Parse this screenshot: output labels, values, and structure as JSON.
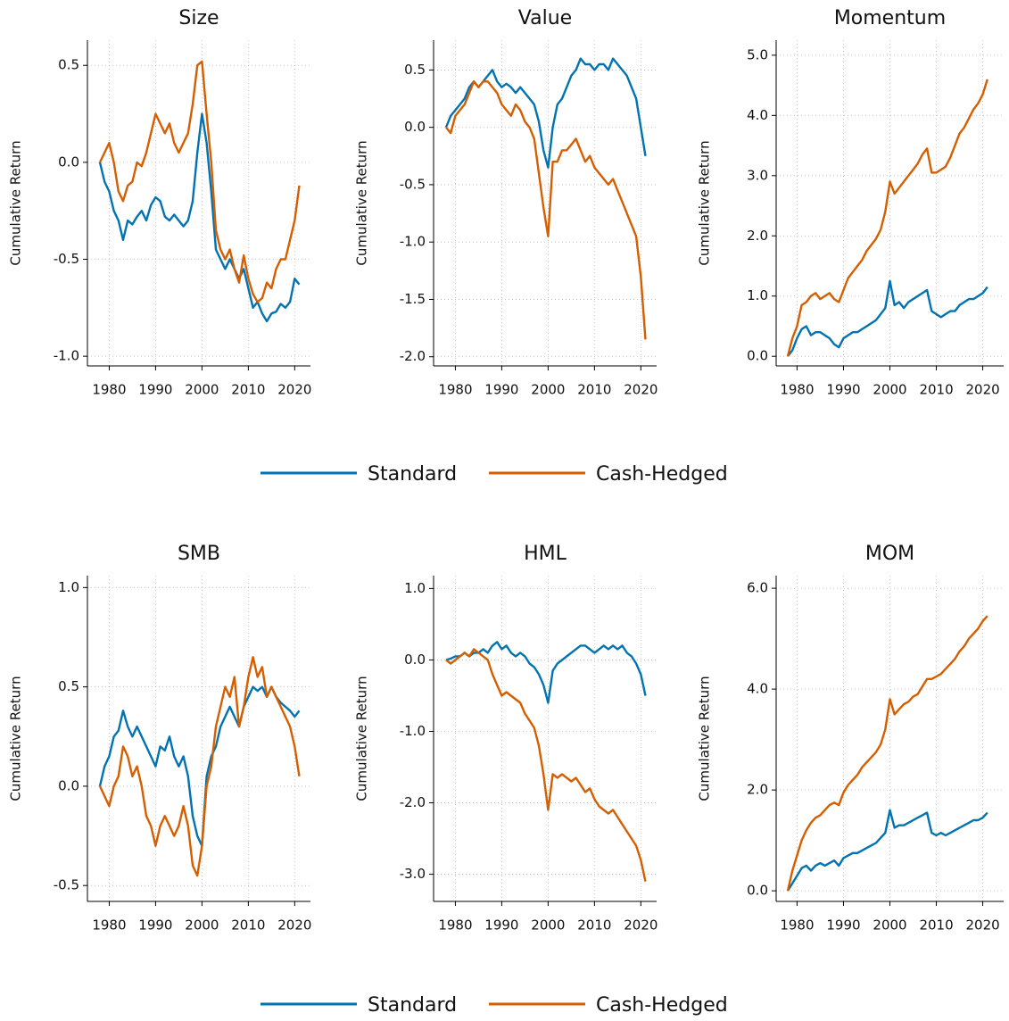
{
  "chart_data": [
    {
      "type": "line",
      "title": "Size",
      "ylabel": "Cumulative Return",
      "grid": true,
      "x": [
        1978,
        1979,
        1980,
        1981,
        1982,
        1983,
        1984,
        1985,
        1986,
        1987,
        1988,
        1989,
        1990,
        1991,
        1992,
        1993,
        1994,
        1995,
        1996,
        1997,
        1998,
        1999,
        2000,
        2001,
        2002,
        2003,
        2004,
        2005,
        2006,
        2007,
        2008,
        2009,
        2010,
        2011,
        2012,
        2013,
        2014,
        2015,
        2016,
        2017,
        2018,
        2019,
        2020,
        2021
      ],
      "xlim": [
        1975.3,
        2023.4
      ],
      "xticks": [
        1980,
        1990,
        2000,
        2010,
        2020
      ],
      "ylim": [
        -1.05,
        0.63
      ],
      "yticks": [
        {
          "value": -1,
          "label": "-1.0"
        },
        -0.5,
        {
          "value": 0,
          "label": "0.0"
        },
        0.5
      ],
      "series": [
        {
          "name": "Standard",
          "color": "#0173b2",
          "values": [
            0.0,
            -0.1,
            -0.15,
            -0.25,
            -0.3,
            -0.4,
            -0.3,
            -0.32,
            -0.28,
            -0.25,
            -0.3,
            -0.22,
            -0.18,
            -0.2,
            -0.28,
            -0.3,
            -0.27,
            -0.3,
            -0.33,
            -0.3,
            -0.2,
            0.05,
            0.25,
            0.1,
            -0.15,
            -0.45,
            -0.5,
            -0.55,
            -0.5,
            -0.55,
            -0.6,
            -0.55,
            -0.65,
            -0.75,
            -0.72,
            -0.78,
            -0.82,
            -0.78,
            -0.77,
            -0.73,
            -0.75,
            -0.72,
            -0.6,
            -0.63
          ]
        },
        {
          "name": "Cash-Hedged",
          "color": "#d55e00",
          "values": [
            0.0,
            0.05,
            0.1,
            0.0,
            -0.15,
            -0.2,
            -0.12,
            -0.1,
            0.0,
            -0.02,
            0.05,
            0.15,
            0.25,
            0.2,
            0.15,
            0.2,
            0.1,
            0.05,
            0.1,
            0.15,
            0.3,
            0.5,
            0.52,
            0.25,
            0.0,
            -0.35,
            -0.45,
            -0.5,
            -0.45,
            -0.55,
            -0.62,
            -0.48,
            -0.6,
            -0.68,
            -0.72,
            -0.7,
            -0.62,
            -0.65,
            -0.55,
            -0.5,
            -0.5,
            -0.4,
            -0.3,
            -0.12
          ]
        }
      ]
    },
    {
      "type": "line",
      "title": "Value",
      "ylabel": "Cumulative Return",
      "grid": true,
      "x": [
        1978,
        1979,
        1980,
        1981,
        1982,
        1983,
        1984,
        1985,
        1986,
        1987,
        1988,
        1989,
        1990,
        1991,
        1992,
        1993,
        1994,
        1995,
        1996,
        1997,
        1998,
        1999,
        2000,
        2001,
        2002,
        2003,
        2004,
        2005,
        2006,
        2007,
        2008,
        2009,
        2010,
        2011,
        2012,
        2013,
        2014,
        2015,
        2016,
        2017,
        2018,
        2019,
        2020,
        2021
      ],
      "xlim": [
        1975.3,
        2023.4
      ],
      "xticks": [
        1980,
        1990,
        2000,
        2010,
        2020
      ],
      "ylim": [
        -2.08,
        0.76
      ],
      "yticks": [
        {
          "value": -2,
          "label": "-2.0"
        },
        -1.5,
        {
          "value": -1,
          "label": "-1.0"
        },
        -0.5,
        {
          "value": 0,
          "label": "0.0"
        },
        0.5
      ],
      "series": [
        {
          "name": "Standard",
          "color": "#0173b2",
          "values": [
            0.0,
            0.1,
            0.15,
            0.2,
            0.25,
            0.35,
            0.4,
            0.35,
            0.4,
            0.45,
            0.5,
            0.4,
            0.35,
            0.38,
            0.35,
            0.3,
            0.35,
            0.3,
            0.25,
            0.2,
            0.05,
            -0.2,
            -0.35,
            0.0,
            0.2,
            0.25,
            0.35,
            0.45,
            0.5,
            0.6,
            0.55,
            0.55,
            0.5,
            0.55,
            0.55,
            0.5,
            0.6,
            0.55,
            0.5,
            0.45,
            0.35,
            0.25,
            0.0,
            -0.25
          ]
        },
        {
          "name": "Cash-Hedged",
          "color": "#d55e00",
          "values": [
            0.0,
            -0.05,
            0.1,
            0.15,
            0.2,
            0.3,
            0.4,
            0.35,
            0.4,
            0.4,
            0.35,
            0.3,
            0.2,
            0.15,
            0.1,
            0.2,
            0.15,
            0.05,
            0.0,
            -0.1,
            -0.4,
            -0.7,
            -0.95,
            -0.3,
            -0.3,
            -0.2,
            -0.2,
            -0.15,
            -0.1,
            -0.2,
            -0.3,
            -0.25,
            -0.35,
            -0.4,
            -0.45,
            -0.5,
            -0.45,
            -0.55,
            -0.65,
            -0.75,
            -0.85,
            -0.95,
            -1.3,
            -1.85
          ]
        }
      ]
    },
    {
      "type": "line",
      "title": "Momentum",
      "ylabel": "Cumulative Return",
      "grid": true,
      "x": [
        1978,
        1979,
        1980,
        1981,
        1982,
        1983,
        1984,
        1985,
        1986,
        1987,
        1988,
        1989,
        1990,
        1991,
        1992,
        1993,
        1994,
        1995,
        1996,
        1997,
        1998,
        1999,
        2000,
        2001,
        2002,
        2003,
        2004,
        2005,
        2006,
        2007,
        2008,
        2009,
        2010,
        2011,
        2012,
        2013,
        2014,
        2015,
        2016,
        2017,
        2018,
        2019,
        2020,
        2021
      ],
      "xlim": [
        1975.5,
        2024.5
      ],
      "xticks": [
        1980,
        1990,
        2000,
        2010,
        2020
      ],
      "ylim": [
        -0.16,
        5.25
      ],
      "yticks": [
        {
          "value": 0,
          "label": "0.0"
        },
        {
          "value": 1,
          "label": "1.0"
        },
        {
          "value": 2,
          "label": "2.0"
        },
        {
          "value": 3,
          "label": "3.0"
        },
        {
          "value": 4,
          "label": "4.0"
        },
        {
          "value": 5,
          "label": "5.0"
        }
      ],
      "series": [
        {
          "name": "Standard",
          "color": "#0173b2",
          "values": [
            0.0,
            0.1,
            0.3,
            0.45,
            0.5,
            0.35,
            0.4,
            0.4,
            0.35,
            0.3,
            0.2,
            0.15,
            0.3,
            0.35,
            0.4,
            0.4,
            0.45,
            0.5,
            0.55,
            0.6,
            0.7,
            0.8,
            1.25,
            0.85,
            0.9,
            0.8,
            0.9,
            0.95,
            1.0,
            1.05,
            1.1,
            0.75,
            0.7,
            0.65,
            0.7,
            0.75,
            0.75,
            0.85,
            0.9,
            0.95,
            0.95,
            1.0,
            1.05,
            1.15
          ]
        },
        {
          "name": "Cash-Hedged",
          "color": "#d55e00",
          "values": [
            0.0,
            0.3,
            0.5,
            0.85,
            0.9,
            1.0,
            1.05,
            0.95,
            1.0,
            1.05,
            0.95,
            0.9,
            1.1,
            1.3,
            1.4,
            1.5,
            1.6,
            1.75,
            1.85,
            1.95,
            2.1,
            2.4,
            2.9,
            2.7,
            2.8,
            2.9,
            3.0,
            3.1,
            3.2,
            3.35,
            3.45,
            3.05,
            3.05,
            3.1,
            3.15,
            3.3,
            3.5,
            3.7,
            3.8,
            3.95,
            4.1,
            4.2,
            4.35,
            4.6
          ]
        }
      ]
    },
    {
      "type": "line",
      "title": "SMB",
      "ylabel": "Cumulative Return",
      "grid": true,
      "x": [
        1978,
        1979,
        1980,
        1981,
        1982,
        1983,
        1984,
        1985,
        1986,
        1987,
        1988,
        1989,
        1990,
        1991,
        1992,
        1993,
        1994,
        1995,
        1996,
        1997,
        1998,
        1999,
        2000,
        2001,
        2002,
        2003,
        2004,
        2005,
        2006,
        2007,
        2008,
        2009,
        2010,
        2011,
        2012,
        2013,
        2014,
        2015,
        2016,
        2017,
        2018,
        2019,
        2020,
        2021
      ],
      "xlim": [
        1975.3,
        2023.4
      ],
      "xticks": [
        1980,
        1990,
        2000,
        2010,
        2020
      ],
      "ylim": [
        -0.58,
        1.06
      ],
      "yticks": [
        -0.5,
        {
          "value": 0,
          "label": "0.0"
        },
        0.5,
        {
          "value": 1,
          "label": "1.0"
        }
      ],
      "series": [
        {
          "name": "Standard",
          "color": "#0173b2",
          "values": [
            0.0,
            0.1,
            0.15,
            0.25,
            0.28,
            0.38,
            0.3,
            0.25,
            0.3,
            0.25,
            0.2,
            0.15,
            0.1,
            0.2,
            0.18,
            0.25,
            0.15,
            0.1,
            0.15,
            0.05,
            -0.15,
            -0.25,
            -0.3,
            0.05,
            0.15,
            0.2,
            0.3,
            0.35,
            0.4,
            0.35,
            0.3,
            0.4,
            0.45,
            0.5,
            0.48,
            0.5,
            0.45,
            0.5,
            0.45,
            0.42,
            0.4,
            0.38,
            0.35,
            0.38
          ]
        },
        {
          "name": "Cash-Hedged",
          "color": "#d55e00",
          "values": [
            0.0,
            -0.05,
            -0.1,
            0.0,
            0.05,
            0.2,
            0.15,
            0.05,
            0.1,
            0.0,
            -0.15,
            -0.2,
            -0.3,
            -0.2,
            -0.15,
            -0.2,
            -0.25,
            -0.2,
            -0.1,
            -0.2,
            -0.4,
            -0.45,
            -0.3,
            0.0,
            0.1,
            0.3,
            0.4,
            0.5,
            0.45,
            0.55,
            0.3,
            0.4,
            0.55,
            0.65,
            0.55,
            0.6,
            0.45,
            0.5,
            0.45,
            0.4,
            0.35,
            0.3,
            0.2,
            0.05
          ]
        }
      ]
    },
    {
      "type": "line",
      "title": "HML",
      "ylabel": "Cumulative Return",
      "grid": true,
      "x": [
        1978,
        1979,
        1980,
        1981,
        1982,
        1983,
        1984,
        1985,
        1986,
        1987,
        1988,
        1989,
        1990,
        1991,
        1992,
        1993,
        1994,
        1995,
        1996,
        1997,
        1998,
        1999,
        2000,
        2001,
        2002,
        2003,
        2004,
        2005,
        2006,
        2007,
        2008,
        2009,
        2010,
        2011,
        2012,
        2013,
        2014,
        2015,
        2016,
        2017,
        2018,
        2019,
        2020,
        2021
      ],
      "xlim": [
        1975.3,
        2023.4
      ],
      "xticks": [
        1980,
        1990,
        2000,
        2010,
        2020
      ],
      "ylim": [
        -3.38,
        1.18
      ],
      "yticks": [
        {
          "value": -3,
          "label": "-3.0"
        },
        {
          "value": -2,
          "label": "-2.0"
        },
        {
          "value": -1,
          "label": "-1.0"
        },
        {
          "value": 0,
          "label": "0.0"
        },
        {
          "value": 1,
          "label": "1.0"
        }
      ],
      "series": [
        {
          "name": "Standard",
          "color": "#0173b2",
          "values": [
            0.0,
            0.02,
            0.05,
            0.05,
            0.1,
            0.05,
            0.1,
            0.1,
            0.15,
            0.1,
            0.2,
            0.25,
            0.15,
            0.2,
            0.1,
            0.05,
            0.1,
            0.05,
            -0.05,
            -0.1,
            -0.2,
            -0.35,
            -0.6,
            -0.15,
            -0.05,
            0.0,
            0.05,
            0.1,
            0.15,
            0.2,
            0.2,
            0.15,
            0.1,
            0.15,
            0.2,
            0.15,
            0.2,
            0.15,
            0.2,
            0.1,
            0.05,
            -0.05,
            -0.2,
            -0.5
          ]
        },
        {
          "name": "Cash-Hedged",
          "color": "#d55e00",
          "values": [
            0.0,
            -0.05,
            0.0,
            0.05,
            0.1,
            0.05,
            0.15,
            0.1,
            0.05,
            0.0,
            -0.2,
            -0.35,
            -0.5,
            -0.45,
            -0.5,
            -0.55,
            -0.6,
            -0.75,
            -0.85,
            -0.95,
            -1.2,
            -1.6,
            -2.1,
            -1.6,
            -1.65,
            -1.6,
            -1.65,
            -1.7,
            -1.65,
            -1.75,
            -1.85,
            -1.8,
            -1.95,
            -2.05,
            -2.1,
            -2.15,
            -2.1,
            -2.2,
            -2.3,
            -2.4,
            -2.5,
            -2.6,
            -2.8,
            -3.1
          ]
        }
      ]
    },
    {
      "type": "line",
      "title": "MOM",
      "ylabel": "Cumulative Return",
      "grid": true,
      "x": [
        1978,
        1979,
        1980,
        1981,
        1982,
        1983,
        1984,
        1985,
        1986,
        1987,
        1988,
        1989,
        1990,
        1991,
        1992,
        1993,
        1994,
        1995,
        1996,
        1997,
        1998,
        1999,
        2000,
        2001,
        2002,
        2003,
        2004,
        2005,
        2006,
        2007,
        2008,
        2009,
        2010,
        2011,
        2012,
        2013,
        2014,
        2015,
        2016,
        2017,
        2018,
        2019,
        2020,
        2021
      ],
      "xlim": [
        1975.5,
        2024.5
      ],
      "xticks": [
        1980,
        1990,
        2000,
        2010,
        2020
      ],
      "ylim": [
        -0.21,
        6.25
      ],
      "yticks": [
        {
          "value": 0,
          "label": "0.0"
        },
        {
          "value": 2,
          "label": "2.0"
        },
        {
          "value": 4,
          "label": "4.0"
        },
        {
          "value": 6,
          "label": "6.0"
        }
      ],
      "series": [
        {
          "name": "Standard",
          "color": "#0173b2",
          "values": [
            0.0,
            0.15,
            0.3,
            0.45,
            0.5,
            0.4,
            0.5,
            0.55,
            0.5,
            0.55,
            0.6,
            0.5,
            0.65,
            0.7,
            0.75,
            0.75,
            0.8,
            0.85,
            0.9,
            0.95,
            1.05,
            1.15,
            1.6,
            1.25,
            1.3,
            1.3,
            1.35,
            1.4,
            1.45,
            1.5,
            1.55,
            1.15,
            1.1,
            1.15,
            1.1,
            1.15,
            1.2,
            1.25,
            1.3,
            1.35,
            1.4,
            1.4,
            1.45,
            1.55
          ]
        },
        {
          "name": "Cash-Hedged",
          "color": "#d55e00",
          "values": [
            0.0,
            0.4,
            0.7,
            1.0,
            1.2,
            1.35,
            1.45,
            1.5,
            1.6,
            1.7,
            1.75,
            1.7,
            1.95,
            2.1,
            2.2,
            2.3,
            2.45,
            2.55,
            2.65,
            2.75,
            2.9,
            3.2,
            3.8,
            3.5,
            3.6,
            3.7,
            3.75,
            3.85,
            3.9,
            4.05,
            4.2,
            4.2,
            4.25,
            4.3,
            4.4,
            4.5,
            4.6,
            4.75,
            4.85,
            5.0,
            5.1,
            5.2,
            5.35,
            5.45
          ]
        }
      ]
    }
  ]
}
